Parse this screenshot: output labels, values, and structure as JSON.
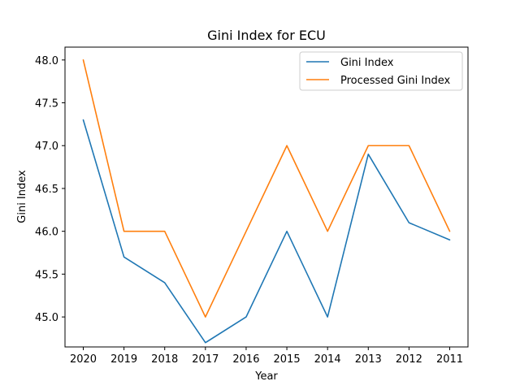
{
  "chart_data": {
    "type": "line",
    "title": "Gini Index for ECU",
    "xlabel": "Year",
    "ylabel": "Gini Index",
    "categories": [
      "2020",
      "2019",
      "2018",
      "2017",
      "2016",
      "2015",
      "2014",
      "2013",
      "2012",
      "2011"
    ],
    "ylim": [
      44.65,
      48.15
    ],
    "yticks": [
      "45.0",
      "45.5",
      "46.0",
      "46.5",
      "47.0",
      "47.5",
      "48.0"
    ],
    "grid": false,
    "legend_position": "top-right",
    "series": [
      {
        "name": "Gini Index",
        "color": "#1f77b4",
        "values": [
          47.3,
          45.7,
          45.4,
          44.7,
          45.0,
          46.0,
          45.0,
          46.9,
          46.1,
          45.9
        ]
      },
      {
        "name": "Processed Gini Index",
        "color": "#ff7f0e",
        "values": [
          48.0,
          46.0,
          46.0,
          45.0,
          46.0,
          47.0,
          46.0,
          47.0,
          47.0,
          46.0
        ]
      }
    ]
  }
}
